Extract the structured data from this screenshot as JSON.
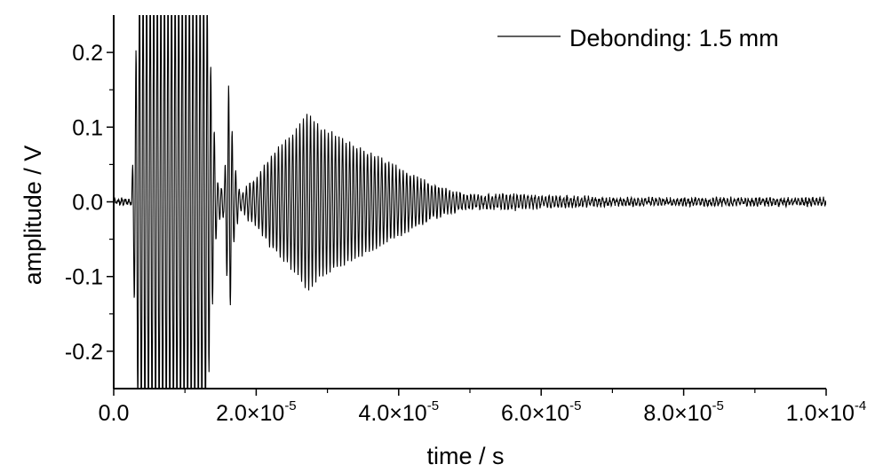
{
  "chart_data": {
    "type": "line",
    "xlabel": "time / s",
    "ylabel": "amplitude / V",
    "xlim": [
      0,
      0.0001
    ],
    "ylim": [
      -0.25,
      0.25
    ],
    "x_ticks": [
      {
        "value": 0,
        "mantissa": "0.0",
        "exp": ""
      },
      {
        "value": 2e-05,
        "mantissa": "2.0×10",
        "exp": "-5"
      },
      {
        "value": 4e-05,
        "mantissa": "4.0×10",
        "exp": "-5"
      },
      {
        "value": 6e-05,
        "mantissa": "6.0×10",
        "exp": "-5"
      },
      {
        "value": 8e-05,
        "mantissa": "8.0×10",
        "exp": "-5"
      },
      {
        "value": 0.0001,
        "mantissa": "1.0×10",
        "exp": "-4"
      }
    ],
    "y_ticks": [
      {
        "value": 0.2,
        "label": "0.2"
      },
      {
        "value": 0.1,
        "label": "0.1"
      },
      {
        "value": 0.0,
        "label": "0.0"
      },
      {
        "value": -0.1,
        "label": "-0.1"
      },
      {
        "value": -0.2,
        "label": "-0.2"
      }
    ],
    "legend_position": "top-right",
    "grid": false,
    "series": [
      {
        "name": "Debonding: 1.5 mm",
        "color": "#000000",
        "envelope_x": [
          0,
          2.5e-06,
          3e-06,
          3.5e-06,
          1.3e-05,
          1.38e-05,
          1.45e-05,
          1.5e-05,
          1.55e-05,
          1.62e-05,
          1.68e-05,
          1.75e-05,
          1.8e-05,
          1.9e-05,
          2e-05,
          2.2e-05,
          2.4e-05,
          2.6e-05,
          2.7e-05,
          2.9e-05,
          3.1e-05,
          3.3e-05,
          3.5e-05,
          3.7e-05,
          4e-05,
          4.3e-05,
          4.6e-05,
          4.9e-05,
          5.2e-05,
          5.6e-05,
          6e-05,
          6.5e-05,
          7e-05,
          8e-05,
          9e-05,
          0.0001
        ],
        "envelope_amp": [
          0.003,
          0.003,
          0.17,
          0.3,
          0.3,
          0.15,
          0.03,
          0.02,
          0.02,
          0.17,
          0.06,
          0.02,
          0.01,
          0.025,
          0.03,
          0.06,
          0.08,
          0.1,
          0.12,
          0.1,
          0.09,
          0.08,
          0.07,
          0.06,
          0.045,
          0.03,
          0.018,
          0.01,
          0.008,
          0.01,
          0.007,
          0.006,
          0.004,
          0.004,
          0.004,
          0.004
        ],
        "carrier_frequency_hz": 2000000
      }
    ]
  }
}
